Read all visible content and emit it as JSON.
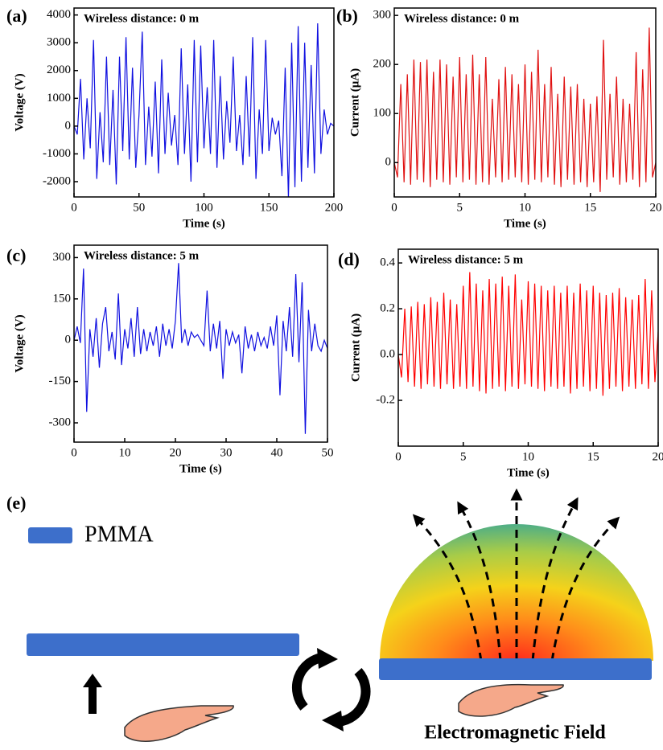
{
  "chart_data": [
    {
      "type": "line",
      "panel_label": "(a)",
      "annotation": "Wireless distance: 0 m",
      "xlabel": "Time (s)",
      "ylabel": "Voltage (V)",
      "color": "#1010e0",
      "xlim": [
        0,
        200
      ],
      "ylim": [
        -2550,
        4250
      ],
      "xticks": [
        0,
        50,
        100,
        150,
        200
      ],
      "yticks": [
        -2000,
        -1000,
        0,
        1000,
        2000,
        3000,
        4000
      ],
      "x": [
        0,
        2.5,
        5,
        7.5,
        10,
        12.5,
        15,
        17.5,
        20,
        22.5,
        25,
        27.5,
        30,
        32.5,
        35,
        37.5,
        40,
        42.5,
        45,
        47.5,
        50,
        52.5,
        55,
        57.5,
        60,
        62.5,
        65,
        67.5,
        70,
        72.5,
        75,
        77.5,
        80,
        82.5,
        85,
        87.5,
        90,
        92.5,
        95,
        97.5,
        100,
        102.5,
        105,
        107.5,
        110,
        112.5,
        115,
        117.5,
        120,
        122.5,
        125,
        127.5,
        130,
        132.5,
        135,
        137.5,
        140,
        142.5,
        145,
        147.5,
        150,
        152.5,
        155,
        157.5,
        160,
        162.5,
        165,
        167.5,
        170,
        172.5,
        175,
        177.5,
        180,
        182.5,
        185,
        187.5,
        190,
        192.5,
        195,
        197.5,
        200
      ],
      "values": [
        0,
        -300,
        1700,
        -1200,
        1000,
        -800,
        3100,
        -1900,
        500,
        -1300,
        2500,
        -1400,
        1300,
        -2100,
        2500,
        -900,
        3200,
        -1200,
        2100,
        -1500,
        400,
        3400,
        -1400,
        700,
        -1100,
        1600,
        -1700,
        2400,
        -1000,
        1200,
        -700,
        400,
        -1400,
        2800,
        -1000,
        1500,
        -2000,
        3100,
        -1300,
        2900,
        -800,
        1400,
        -1000,
        3100,
        -1500,
        1800,
        -1200,
        900,
        -600,
        2500,
        -900,
        400,
        -1400,
        1800,
        -1100,
        3200,
        -1900,
        600,
        -1000,
        3100,
        -900,
        300,
        -300,
        200,
        -1800,
        2100,
        -2600,
        3000,
        -2200,
        3600,
        -2000,
        3000,
        -1500,
        2200,
        -1700,
        3700,
        -1000,
        600,
        -300,
        100,
        0
      ]
    },
    {
      "type": "line",
      "panel_label": "(b)",
      "annotation": "Wireless distance: 0 m",
      "xlabel": "Time (s)",
      "ylabel": "Current (μA)",
      "color": "#e01010",
      "xlim": [
        0,
        20
      ],
      "ylim": [
        -70,
        315
      ],
      "xticks": [
        0,
        5,
        10,
        15,
        20
      ],
      "yticks": [
        0,
        100,
        200,
        300
      ],
      "x": [
        0,
        0.25,
        0.5,
        0.75,
        1,
        1.25,
        1.5,
        1.75,
        2,
        2.25,
        2.5,
        2.75,
        3,
        3.25,
        3.5,
        3.75,
        4,
        4.25,
        4.5,
        4.75,
        5,
        5.25,
        5.5,
        5.75,
        6,
        6.25,
        6.5,
        6.75,
        7,
        7.25,
        7.5,
        7.75,
        8,
        8.25,
        8.5,
        8.75,
        9,
        9.25,
        9.5,
        9.75,
        10,
        10.25,
        10.5,
        10.75,
        11,
        11.25,
        11.5,
        11.75,
        12,
        12.25,
        12.5,
        12.75,
        13,
        13.25,
        13.5,
        13.75,
        14,
        14.25,
        14.5,
        14.75,
        15,
        15.25,
        15.5,
        15.75,
        16,
        16.25,
        16.5,
        16.75,
        17,
        17.25,
        17.5,
        17.75,
        18,
        18.25,
        18.5,
        18.75,
        19,
        19.25,
        19.5,
        19.75,
        20
      ],
      "values": [
        0,
        -30,
        160,
        -40,
        180,
        -45,
        210,
        -35,
        205,
        -40,
        210,
        -50,
        185,
        -35,
        210,
        -40,
        200,
        -45,
        175,
        -30,
        215,
        -40,
        180,
        -35,
        220,
        -45,
        180,
        -40,
        215,
        -45,
        130,
        -30,
        170,
        -40,
        195,
        -35,
        180,
        -30,
        160,
        -40,
        200,
        -45,
        185,
        -35,
        230,
        -40,
        160,
        -30,
        195,
        -45,
        140,
        -50,
        175,
        -35,
        155,
        -45,
        160,
        -40,
        130,
        -50,
        120,
        -40,
        135,
        -60,
        250,
        -35,
        140,
        -30,
        175,
        -45,
        130,
        -40,
        120,
        -35,
        225,
        -50,
        190,
        -40,
        275,
        -30,
        0
      ]
    },
    {
      "type": "line",
      "panel_label": "(c)",
      "annotation": "Wireless distance: 5 m",
      "xlabel": "Time (s)",
      "ylabel": "Voltage (V)",
      "color": "#1010e0",
      "xlim": [
        0,
        50
      ],
      "ylim": [
        -370,
        345
      ],
      "xticks": [
        0,
        10,
        20,
        30,
        40,
        50
      ],
      "yticks": [
        -300,
        -150,
        0,
        150,
        300
      ],
      "x": [
        0,
        0.625,
        1.25,
        1.875,
        2.5,
        3.125,
        3.75,
        4.375,
        5,
        5.625,
        6.25,
        6.875,
        7.5,
        8.125,
        8.75,
        9.375,
        10,
        10.625,
        11.25,
        11.875,
        12.5,
        13.125,
        13.75,
        14.375,
        15,
        15.625,
        16.25,
        16.875,
        17.5,
        18.125,
        18.75,
        19.375,
        20,
        20.625,
        21.25,
        21.875,
        22.5,
        23.125,
        23.75,
        24.375,
        25,
        25.625,
        26.25,
        26.875,
        27.5,
        28.125,
        28.75,
        29.375,
        30,
        30.625,
        31.25,
        31.875,
        32.5,
        33.125,
        33.75,
        34.375,
        35,
        35.625,
        36.25,
        36.875,
        37.5,
        38.125,
        38.75,
        39.375,
        40,
        40.625,
        41.25,
        41.875,
        42.5,
        43.125,
        43.75,
        44.375,
        45,
        45.625,
        46.25,
        46.875,
        47.5,
        48.125,
        48.75,
        49.375,
        50
      ],
      "values": [
        0,
        50,
        -10,
        260,
        -260,
        40,
        -60,
        80,
        -100,
        60,
        120,
        -40,
        30,
        -70,
        170,
        -90,
        40,
        -30,
        80,
        -60,
        120,
        -50,
        40,
        -40,
        30,
        -20,
        50,
        -60,
        60,
        -20,
        40,
        -30,
        70,
        280,
        -10,
        40,
        -20,
        30,
        10,
        20,
        0,
        -20,
        180,
        -40,
        60,
        -30,
        70,
        -140,
        40,
        -20,
        30,
        -10,
        20,
        -120,
        50,
        -30,
        20,
        -40,
        30,
        -20,
        10,
        -30,
        50,
        -20,
        90,
        -200,
        70,
        -40,
        120,
        -60,
        240,
        -80,
        210,
        -340,
        110,
        -40,
        60,
        -20,
        -40,
        0,
        -30
      ]
    },
    {
      "type": "line",
      "panel_label": "(d)",
      "annotation": "Wireless distance: 5 m",
      "xlabel": "Time (s)",
      "ylabel": "Current (μA)",
      "color": "#ff0000",
      "xlim": [
        0,
        20
      ],
      "ylim": [
        -0.4,
        0.46
      ],
      "xticks": [
        0,
        5,
        10,
        15,
        20
      ],
      "yticks": [
        -0.2,
        {
          "value": 0,
          "label": "0.0"
        },
        0.2,
        0.4
      ],
      "x": [
        0,
        0.25,
        0.5,
        0.75,
        1,
        1.25,
        1.5,
        1.75,
        2,
        2.25,
        2.5,
        2.75,
        3,
        3.25,
        3.5,
        3.75,
        4,
        4.25,
        4.5,
        4.75,
        5,
        5.25,
        5.5,
        5.75,
        6,
        6.25,
        6.5,
        6.75,
        7,
        7.25,
        7.5,
        7.75,
        8,
        8.25,
        8.5,
        8.75,
        9,
        9.25,
        9.5,
        9.75,
        10,
        10.25,
        10.5,
        10.75,
        11,
        11.25,
        11.5,
        11.75,
        12,
        12.25,
        12.5,
        12.75,
        13,
        13.25,
        13.5,
        13.75,
        14,
        14.25,
        14.5,
        14.75,
        15,
        15.25,
        15.5,
        15.75,
        16,
        16.25,
        16.5,
        16.75,
        17,
        17.25,
        17.5,
        17.75,
        18,
        18.25,
        18.5,
        18.75,
        19,
        19.25,
        19.5,
        19.75,
        20
      ],
      "values": [
        0,
        -0.1,
        0.2,
        -0.12,
        0.21,
        -0.14,
        0.23,
        -0.15,
        0.22,
        -0.13,
        0.25,
        -0.14,
        0.23,
        -0.15,
        0.27,
        -0.13,
        0.24,
        -0.15,
        0.22,
        -0.14,
        0.3,
        -0.15,
        0.36,
        -0.14,
        0.31,
        -0.16,
        0.28,
        -0.17,
        0.33,
        -0.15,
        0.31,
        -0.14,
        0.34,
        -0.16,
        0.3,
        -0.14,
        0.35,
        -0.15,
        0.24,
        -0.13,
        0.32,
        -0.14,
        0.31,
        -0.15,
        0.3,
        -0.16,
        0.28,
        -0.14,
        0.3,
        -0.15,
        0.27,
        -0.14,
        0.3,
        -0.17,
        0.27,
        -0.15,
        0.31,
        -0.14,
        0.28,
        -0.16,
        0.3,
        -0.15,
        0.27,
        -0.18,
        0.26,
        -0.15,
        0.27,
        -0.14,
        0.29,
        -0.16,
        0.25,
        -0.14,
        0.24,
        -0.15,
        0.26,
        -0.13,
        0.33,
        -0.15,
        0.28,
        -0.12,
        0.1
      ]
    }
  ],
  "diagram": {
    "panel_label": "(e)",
    "legend": "PMMA",
    "caption": "Electromagnetic Field"
  }
}
